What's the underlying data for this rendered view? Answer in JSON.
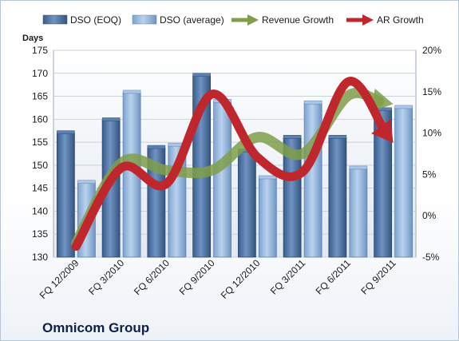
{
  "chart_data": {
    "type": "bar",
    "title": "Omnicom Group",
    "ylabel": "Days",
    "ylim": [
      130,
      175
    ],
    "yticks": [
      130,
      135,
      140,
      145,
      150,
      155,
      160,
      165,
      170,
      175
    ],
    "y2lim": [
      -5,
      20
    ],
    "y2ticks": [
      "-5%",
      "0%",
      "5%",
      "10%",
      "15%",
      "20%"
    ],
    "y2values": [
      -5,
      0,
      5,
      10,
      15,
      20
    ],
    "categories": [
      "FQ 12/2009",
      "FQ 3/2010",
      "FQ 6/2010",
      "FQ 9/2010",
      "FQ 12/2010",
      "FQ 3/2011",
      "FQ 6/2011",
      "FQ 9/2011"
    ],
    "series": [
      {
        "name": "DSO (EOQ)",
        "type": "bar",
        "axis": "left",
        "color": "#4a6d9c",
        "values": [
          157,
          159.8,
          153.8,
          169.5,
          153,
          156,
          156,
          162
        ]
      },
      {
        "name": "DSO (average)",
        "type": "bar",
        "axis": "left",
        "color": "#8fb1d9",
        "values": [
          146.2,
          165.8,
          154.3,
          163.8,
          147.2,
          163.5,
          149.3,
          162.5
        ]
      },
      {
        "name": "Revenue Growth",
        "type": "arrow-line",
        "axis": "right",
        "color": "#7f9f4a",
        "values": [
          -3.3,
          6.4,
          5.5,
          5.5,
          9.5,
          7.5,
          14.5,
          13.5
        ]
      },
      {
        "name": "AR Growth",
        "type": "arrow-line",
        "axis": "right",
        "color": "#c0272d",
        "values": [
          -3.7,
          5.8,
          3.9,
          14.7,
          7.1,
          5.3,
          16.2,
          8.8
        ]
      }
    ],
    "legend": "top",
    "grid": true
  }
}
